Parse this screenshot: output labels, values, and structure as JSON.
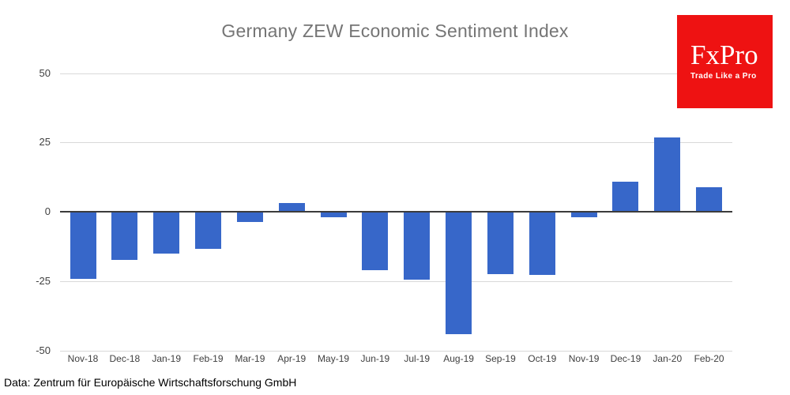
{
  "title": "Germany ZEW Economic Sentiment Index",
  "source_note": "Data: Zentrum für Europäische Wirtschaftsforschung GmbH",
  "logo": {
    "wordmark": "FxPro",
    "tagline": "Trade Like a Pro",
    "background_color": "#ee1212",
    "text_color": "#ffffff"
  },
  "colors": {
    "bar": "#3767c9",
    "gridline": "#d9d9d9",
    "zero_line": "#3c3c3c",
    "title_text": "#757575",
    "tick_text": "#404040"
  },
  "chart_data": {
    "type": "bar",
    "title": "Germany ZEW Economic Sentiment Index",
    "categories": [
      "Nov-18",
      "Dec-18",
      "Jan-19",
      "Feb-19",
      "Mar-19",
      "Apr-19",
      "May-19",
      "Jun-19",
      "Jul-19",
      "Aug-19",
      "Sep-19",
      "Oct-19",
      "Nov-19",
      "Dec-19",
      "Jan-20",
      "Feb-20"
    ],
    "values": [
      -24.1,
      -17.5,
      -15.0,
      -13.4,
      -3.6,
      3.1,
      -2.1,
      -21.1,
      -24.5,
      -44.1,
      -22.5,
      -22.8,
      -2.1,
      10.7,
      26.7,
      8.7
    ],
    "xlabel": "",
    "ylabel": "",
    "ylim": [
      -50,
      50
    ],
    "yticks": [
      50,
      25,
      0,
      -25,
      -50
    ],
    "grid": true,
    "legend": false
  }
}
